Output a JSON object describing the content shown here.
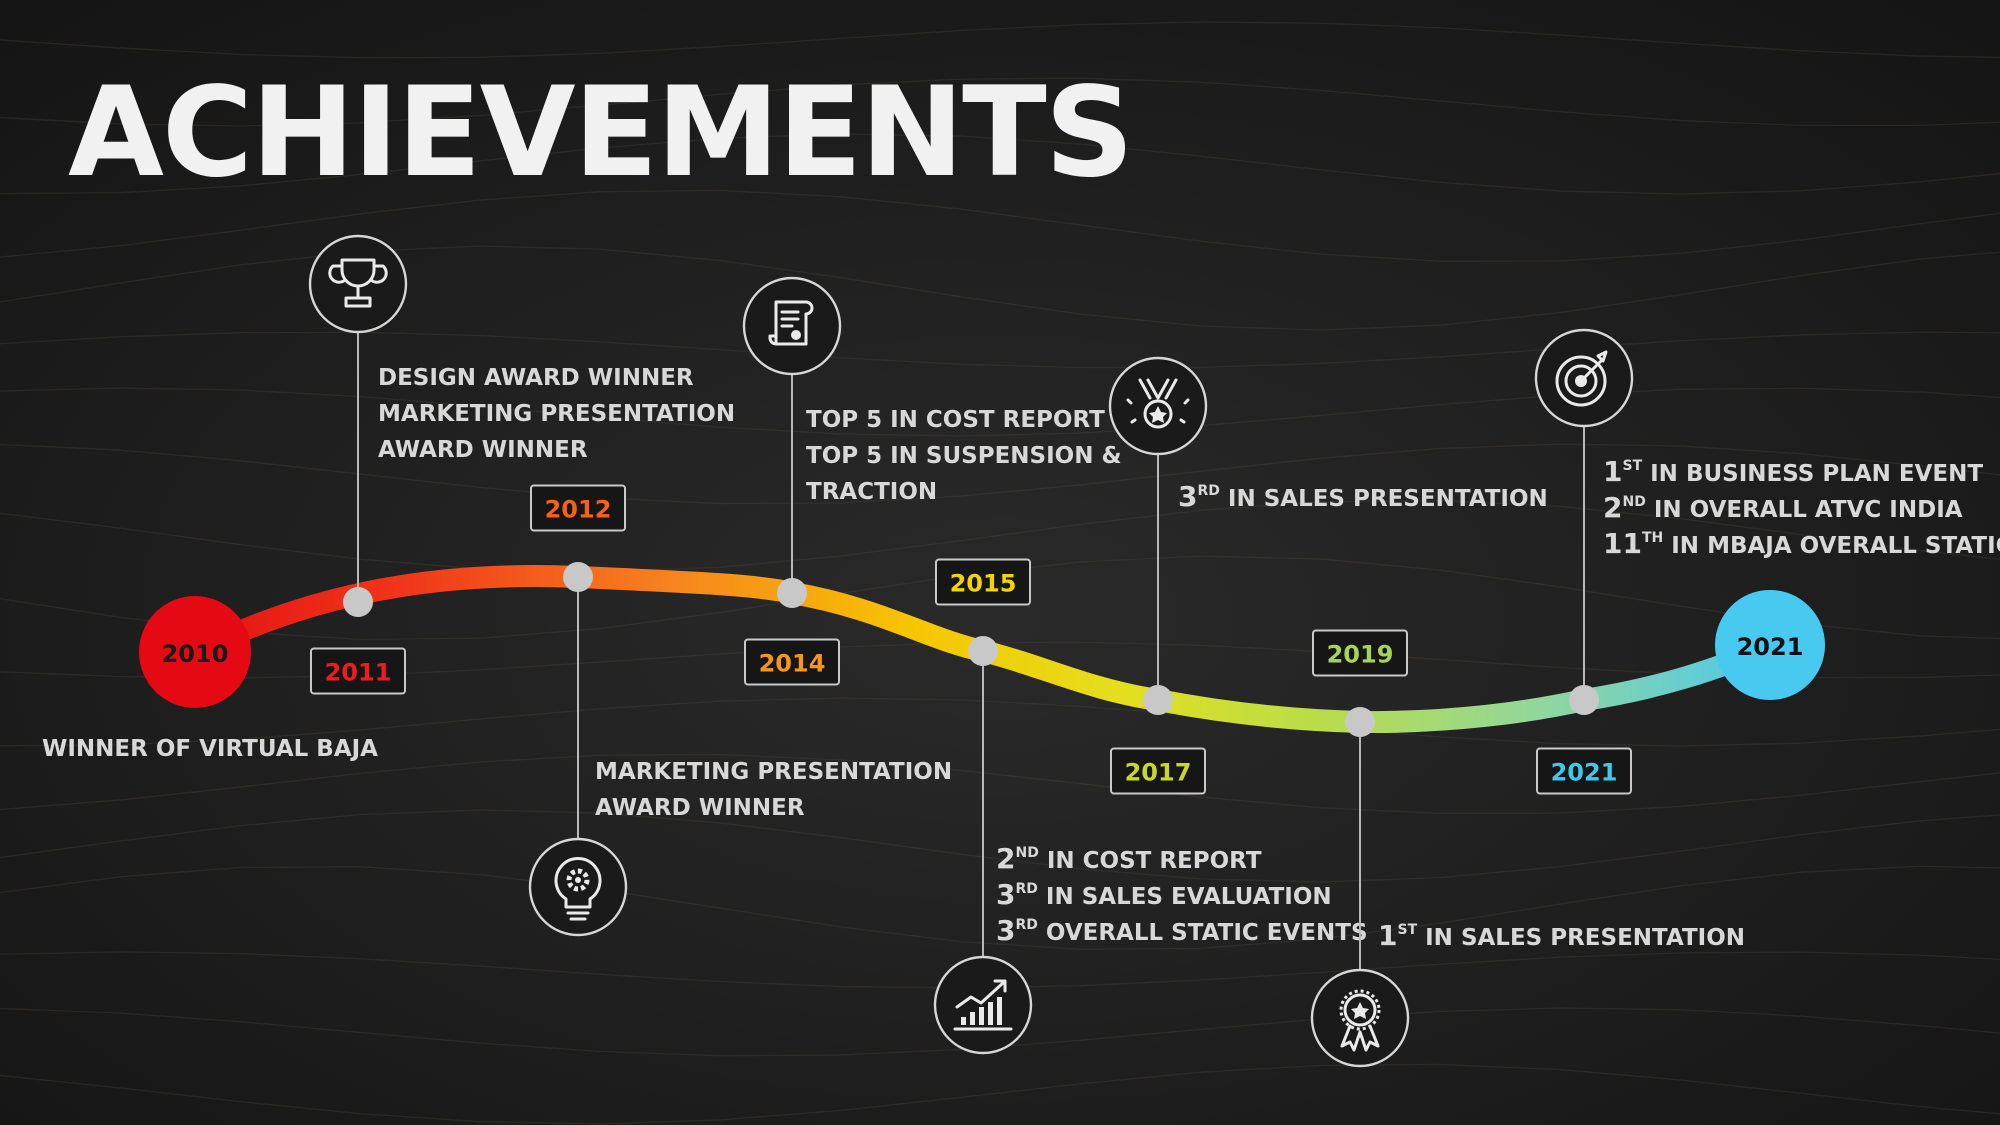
{
  "title": "ACHIEVEMENTS",
  "milestones": [
    {
      "year": "2010",
      "color": "#e50914",
      "lines": [
        {
          "text": "WINNER OF VIRTUAL BAJA"
        }
      ]
    },
    {
      "year": "2011",
      "color": "#ee1c1c",
      "icon": "trophy-icon",
      "lines": [
        {
          "text": "DESIGN AWARD WINNER"
        },
        {
          "text": "MARKETING PRESENTATION"
        },
        {
          "text": "AWARD WINNER"
        }
      ]
    },
    {
      "year": "2012",
      "color": "#f5611a",
      "icon": "lightbulb-gear-icon",
      "lines": [
        {
          "text": "MARKETING PRESENTATION"
        },
        {
          "text": "AWARD WINNER"
        }
      ]
    },
    {
      "year": "2014",
      "color": "#f7941d",
      "icon": "certificate-scroll-icon",
      "lines": [
        {
          "text": "TOP 5 IN COST REPORT"
        },
        {
          "text": "TOP 5 IN SUSPENSION &"
        },
        {
          "text": "TRACTION"
        }
      ]
    },
    {
      "year": "2015",
      "color": "#f5d300",
      "icon": "growth-chart-icon",
      "lines": [
        {
          "ord": "2",
          "sup": "ND",
          "text": "IN COST REPORT"
        },
        {
          "ord": "3",
          "sup": "RD",
          "text": "IN SALES EVALUATION"
        },
        {
          "ord": "3",
          "sup": "RD",
          "text": "OVERALL STATIC EVENTS"
        }
      ]
    },
    {
      "year": "2017",
      "color": "#c6d92b",
      "icon": "medal-icon",
      "lines": [
        {
          "ord": "3",
          "sup": "RD",
          "text": "IN SALES PRESENTATION"
        }
      ]
    },
    {
      "year": "2019",
      "color": "#a6d45a",
      "icon": "award-ribbon-icon",
      "lines": [
        {
          "ord": "1",
          "sup": "ST",
          "text": "IN SALES PRESENTATION"
        }
      ]
    },
    {
      "year": "2021",
      "color": "#3fc8e8",
      "icon": "target-icon",
      "lines": [
        {
          "ord": "1",
          "sup": "ST",
          "text": "IN BUSINESS PLAN EVENT"
        },
        {
          "ord": "2",
          "sup": "ND",
          "text": "IN OVERALL ATVC INDIA"
        },
        {
          "ord": "11",
          "sup": "TH",
          "text": "IN MBAJA OVERALL STATIC"
        }
      ]
    }
  ],
  "end_badge": {
    "year": "2021",
    "color": "#47c9f0"
  }
}
